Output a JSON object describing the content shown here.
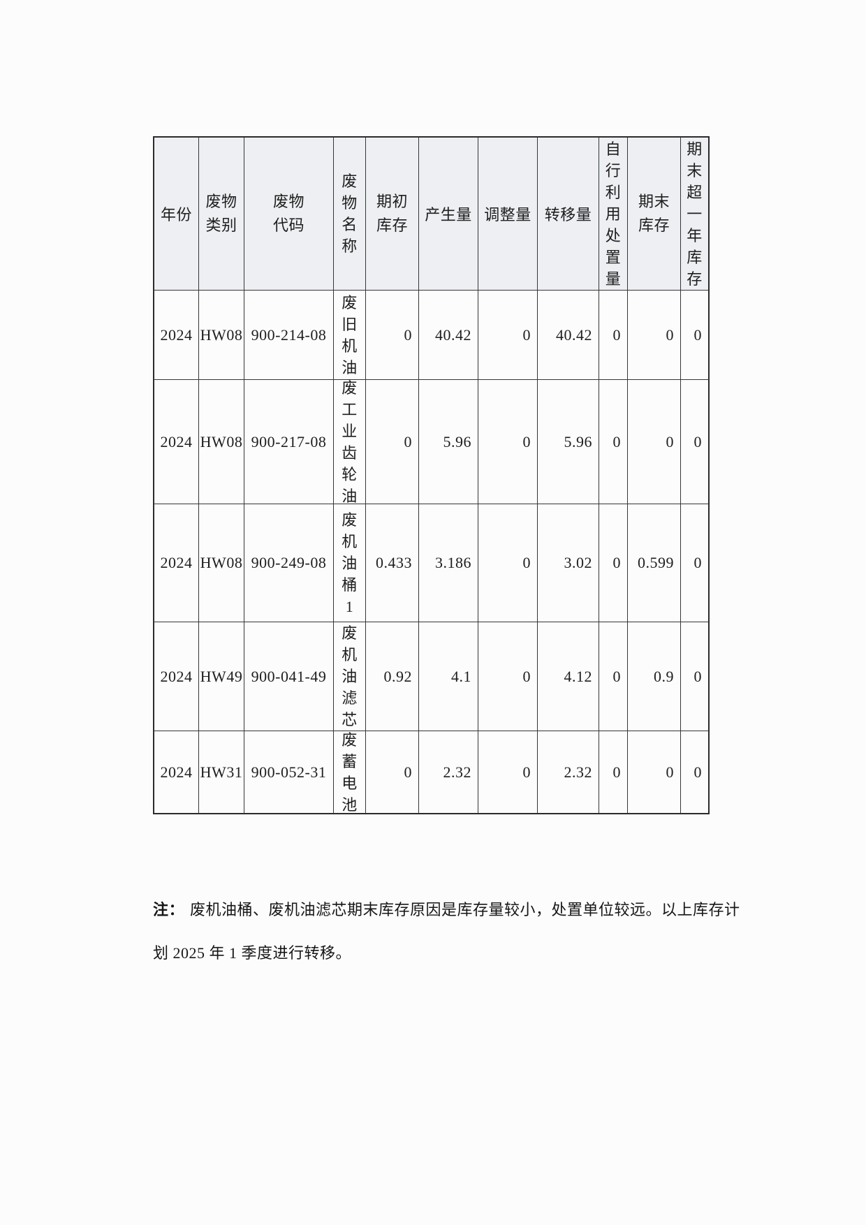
{
  "table": {
    "headers": [
      "年份",
      "废物\n类别",
      "废物\n代码",
      "废\n物\n名\n称",
      "期初\n库存",
      "产生量",
      "调整量",
      "转移量",
      "自\n行\n利\n用\n处\n置\n量",
      "期末\n库存",
      "期\n末\n超\n一\n年\n库\n存"
    ],
    "rows": [
      [
        "2024",
        "HW08",
        "900-214-08",
        "废\n旧\n机\n油",
        "0",
        "40.42",
        "0",
        "40.42",
        "0",
        "0",
        "0"
      ],
      [
        "2024",
        "HW08",
        "900-217-08",
        "废\n工\n业\n齿\n轮\n油",
        "0",
        "5.96",
        "0",
        "5.96",
        "0",
        "0",
        "0"
      ],
      [
        "2024",
        "HW08",
        "900-249-08",
        "废\n机\n油\n桶\n1",
        "0.433",
        "3.186",
        "0",
        "3.02",
        "0",
        "0.599",
        "0"
      ],
      [
        "2024",
        "HW49",
        "900-041-49",
        "废\n机\n油\n滤\n芯",
        "0.92",
        "4.1",
        "0",
        "4.12",
        "0",
        "0.9",
        "0"
      ],
      [
        "2024",
        "HW31",
        "900-052-31",
        "废\n蓄\n电\n池",
        "0",
        "2.32",
        "0",
        "2.32",
        "0",
        "0",
        "0"
      ]
    ]
  },
  "note": {
    "label": "注：",
    "line1": "废机油桶、废机油滤芯期末库存原因是库存量较小，处置单位较远。以上库存计",
    "line2": "划 2025 年 1 季度进行转移。"
  }
}
